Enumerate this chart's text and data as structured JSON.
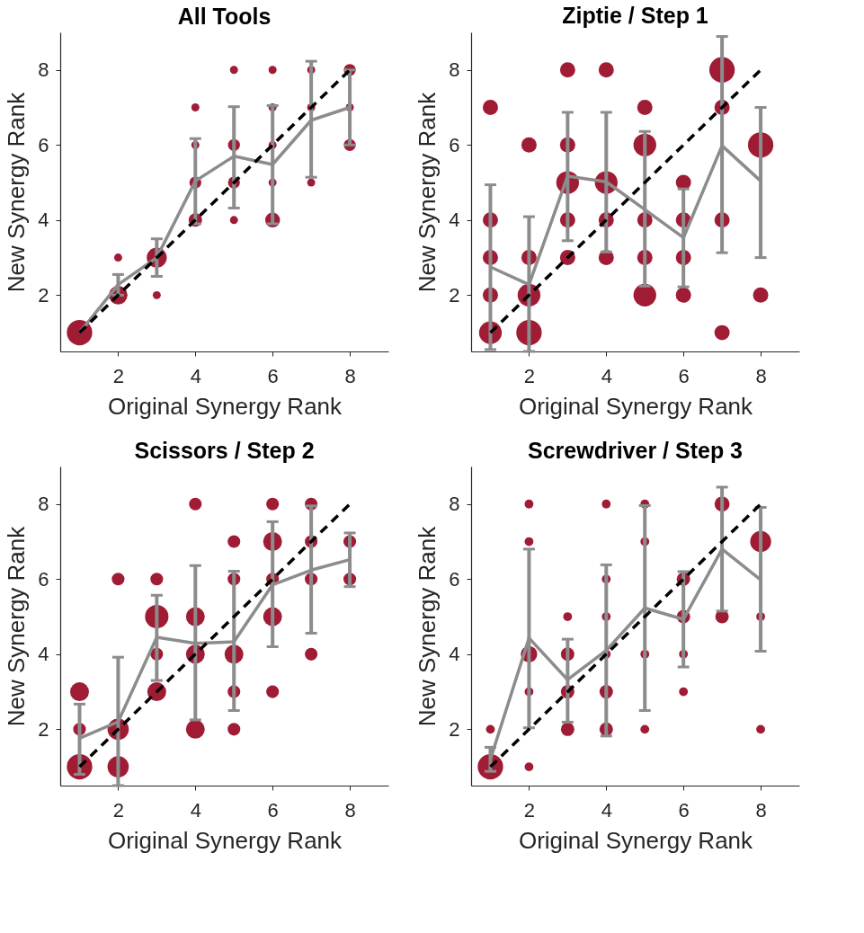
{
  "chart_data": [
    {
      "type": "bubble",
      "title": "All Tools",
      "xlabel": "Original Synergy Rank",
      "ylabel": "New Synergy Rank",
      "xlim": [
        0.5,
        9
      ],
      "ylim": [
        0.5,
        9
      ],
      "xticks": [
        2,
        4,
        6,
        8
      ],
      "yticks": [
        2,
        4,
        6,
        8
      ],
      "series": [
        {
          "color": "#a01c35",
          "x": [
            1,
            2,
            2,
            3,
            3,
            4,
            4,
            4,
            4,
            5,
            5,
            5,
            5,
            6,
            6,
            6,
            6,
            6,
            7,
            7,
            7,
            8,
            8,
            8
          ],
          "values": [
            1,
            2,
            3,
            3,
            2,
            7,
            6,
            5,
            4,
            8,
            6,
            5,
            4,
            8,
            7,
            6,
            5,
            4,
            8,
            7,
            5,
            8,
            7,
            6
          ],
          "sizes": [
            1,
            0.54,
            0.1,
            0.62,
            0.1,
            0.1,
            0.1,
            0.22,
            0.28,
            0.1,
            0.22,
            0.22,
            0.1,
            0.1,
            0.1,
            0.1,
            0.1,
            0.34,
            0.1,
            0.1,
            0.1,
            0.22,
            0.1,
            0.22
          ]
        },
        {
          "type": "line",
          "color": "#8c8c8c",
          "marker": "none",
          "line_style": "solid",
          "x": [
            1,
            2,
            3,
            4,
            5,
            6,
            7,
            8
          ],
          "values": [
            1.0,
            2.28,
            3.0,
            5.04,
            5.7,
            5.48,
            6.66,
            7.0
          ],
          "errors": [
            null,
            [
              2.0,
              2.55
            ],
            [
              2.5,
              3.5
            ],
            [
              3.9,
              6.17
            ],
            [
              4.32,
              7.02
            ],
            [
              3.9,
              7.05
            ],
            [
              5.14,
              8.23
            ],
            [
              6.0,
              8.0
            ]
          ]
        },
        {
          "type": "line",
          "color": "#000000",
          "marker": "none",
          "line_style": "dashed",
          "x": [
            1,
            8
          ],
          "values": [
            1,
            8
          ]
        }
      ]
    },
    {
      "type": "bubble",
      "title": "Ziptie / Step 1",
      "xlabel": "Original Synergy Rank",
      "ylabel": "New Synergy Rank",
      "xlim": [
        0.5,
        9
      ],
      "ylim": [
        0.5,
        9
      ],
      "xticks": [
        2,
        4,
        6,
        8
      ],
      "yticks": [
        2,
        4,
        6,
        8
      ],
      "series": [
        {
          "color": "#a01c35",
          "x": [
            1,
            1,
            1,
            1,
            1,
            2,
            2,
            2,
            2,
            3,
            3,
            3,
            3,
            3,
            4,
            4,
            4,
            4,
            5,
            5,
            5,
            5,
            5,
            6,
            6,
            6,
            6,
            7,
            7,
            7,
            7,
            8,
            8
          ],
          "values": [
            7,
            4,
            3,
            2,
            1,
            6,
            3,
            2,
            1,
            8,
            6,
            5,
            4,
            3,
            8,
            5,
            4,
            3,
            7,
            6,
            4,
            3,
            2,
            5,
            4,
            3,
            2,
            8,
            7,
            4,
            1,
            6,
            2
          ],
          "sizes": [
            0.36,
            0.36,
            0.36,
            0.36,
            0.8,
            0.36,
            0.36,
            0.8,
            1,
            0.36,
            0.36,
            0.8,
            0.36,
            0.36,
            0.36,
            0.8,
            0.36,
            0.36,
            0.36,
            0.8,
            0.36,
            0.36,
            0.8,
            0.36,
            0.36,
            0.36,
            0.36,
            1,
            0.36,
            0.36,
            0.36,
            1,
            0.36
          ]
        },
        {
          "type": "line",
          "color": "#8c8c8c",
          "marker": "none",
          "line_style": "solid",
          "x": [
            1,
            2,
            3,
            4,
            5,
            6,
            7,
            8
          ],
          "values": [
            2.75,
            2.28,
            5.17,
            5.02,
            4.28,
            3.53,
            5.98,
            5.04
          ],
          "errors": [
            [
              0.55,
              4.94
            ],
            [
              0.5,
              4.09
            ],
            [
              3.45,
              6.87
            ],
            [
              3.15,
              6.87
            ],
            [
              2.24,
              6.36
            ],
            [
              2.22,
              4.83
            ],
            [
              3.13,
              8.89
            ],
            [
              3.0,
              7.0
            ]
          ]
        },
        {
          "type": "line",
          "color": "#000000",
          "marker": "none",
          "line_style": "dashed",
          "x": [
            1,
            8
          ],
          "values": [
            1,
            8
          ]
        }
      ]
    },
    {
      "type": "bubble",
      "title": "Scissors / Step 2",
      "xlabel": "Original Synergy Rank",
      "ylabel": "New Synergy Rank",
      "xlim": [
        0.5,
        9
      ],
      "ylim": [
        0.5,
        9
      ],
      "xticks": [
        2,
        4,
        6,
        8
      ],
      "yticks": [
        2,
        4,
        6,
        8
      ],
      "series": [
        {
          "color": "#a01c35",
          "x": [
            1,
            1,
            1,
            2,
            2,
            2,
            3,
            3,
            3,
            3,
            4,
            4,
            4,
            4,
            5,
            5,
            5,
            5,
            5,
            6,
            6,
            6,
            6,
            6,
            7,
            7,
            7,
            7,
            8,
            8
          ],
          "values": [
            3,
            2,
            1,
            6,
            2,
            1,
            6,
            5,
            4,
            3,
            8,
            5,
            4,
            2,
            7,
            6,
            4,
            3,
            2,
            8,
            7,
            6,
            5,
            3,
            8,
            7,
            6,
            4,
            7,
            6
          ],
          "sizes": [
            0.55,
            0.25,
            1,
            0.25,
            0.7,
            0.7,
            0.25,
            0.85,
            0.25,
            0.55,
            0.25,
            0.55,
            0.55,
            0.55,
            0.25,
            0.25,
            0.55,
            0.25,
            0.25,
            0.25,
            0.55,
            0.25,
            0.55,
            0.25,
            0.25,
            0.25,
            0.25,
            0.25,
            0.25,
            0.25
          ]
        },
        {
          "type": "line",
          "color": "#8c8c8c",
          "marker": "none",
          "line_style": "solid",
          "x": [
            1,
            2,
            3,
            4,
            5,
            6,
            7,
            8
          ],
          "values": [
            1.76,
            2.2,
            4.45,
            4.29,
            4.33,
            5.85,
            6.24,
            6.52
          ],
          "errors": [
            [
              0.8,
              2.67
            ],
            [
              0.5,
              3.92
            ],
            [
              3.3,
              5.57
            ],
            [
              2.25,
              6.36
            ],
            [
              2.5,
              6.21
            ],
            [
              4.2,
              7.53
            ],
            [
              4.56,
              7.95
            ],
            [
              5.8,
              7.23
            ]
          ]
        },
        {
          "type": "line",
          "color": "#000000",
          "marker": "none",
          "line_style": "dashed",
          "x": [
            1,
            8
          ],
          "values": [
            1,
            8
          ]
        }
      ]
    },
    {
      "type": "bubble",
      "title": "Screwdriver / Step 3",
      "xlabel": "Original Synergy Rank",
      "ylabel": "New Synergy Rank",
      "xlim": [
        0.5,
        9
      ],
      "ylim": [
        0.5,
        9
      ],
      "xticks": [
        2,
        4,
        6,
        8
      ],
      "yticks": [
        2,
        4,
        6,
        8
      ],
      "series": [
        {
          "color": "#a01c35",
          "x": [
            1,
            1,
            2,
            2,
            2,
            2,
            2,
            3,
            3,
            3,
            3,
            4,
            4,
            4,
            4,
            4,
            4,
            5,
            5,
            5,
            5,
            6,
            6,
            6,
            6,
            7,
            7,
            8,
            8,
            8
          ],
          "values": [
            2,
            1,
            8,
            7,
            4,
            3,
            1,
            5,
            4,
            3,
            2,
            8,
            6,
            5,
            4,
            3,
            2,
            8,
            7,
            4,
            2,
            6,
            5,
            4,
            3,
            8,
            5,
            7,
            5,
            2
          ],
          "sizes": [
            0.12,
            1,
            0.12,
            0.12,
            0.42,
            0.12,
            0.12,
            0.12,
            0.28,
            0.28,
            0.28,
            0.12,
            0.12,
            0.12,
            0.12,
            0.28,
            0.28,
            0.12,
            0.12,
            0.12,
            0.12,
            0.28,
            0.28,
            0.12,
            0.12,
            0.35,
            0.28,
            0.68,
            0.12,
            0.12
          ]
        },
        {
          "type": "line",
          "color": "#8c8c8c",
          "marker": "none",
          "line_style": "solid",
          "x": [
            1,
            2,
            3,
            4,
            5,
            6,
            7,
            8
          ],
          "values": [
            1.2,
            4.43,
            3.32,
            4.1,
            5.23,
            4.93,
            6.8,
            5.98
          ],
          "errors": [
            [
              0.88,
              1.52
            ],
            [
              2.04,
              6.8
            ],
            [
              2.19,
              4.4
            ],
            [
              1.82,
              6.38
            ],
            [
              2.5,
              7.96
            ],
            [
              3.66,
              6.2
            ],
            [
              5.15,
              8.45
            ],
            [
              4.08,
              7.91
            ]
          ]
        },
        {
          "type": "line",
          "color": "#000000",
          "marker": "none",
          "line_style": "dashed",
          "x": [
            1,
            8
          ],
          "values": [
            1,
            8
          ]
        }
      ]
    }
  ]
}
